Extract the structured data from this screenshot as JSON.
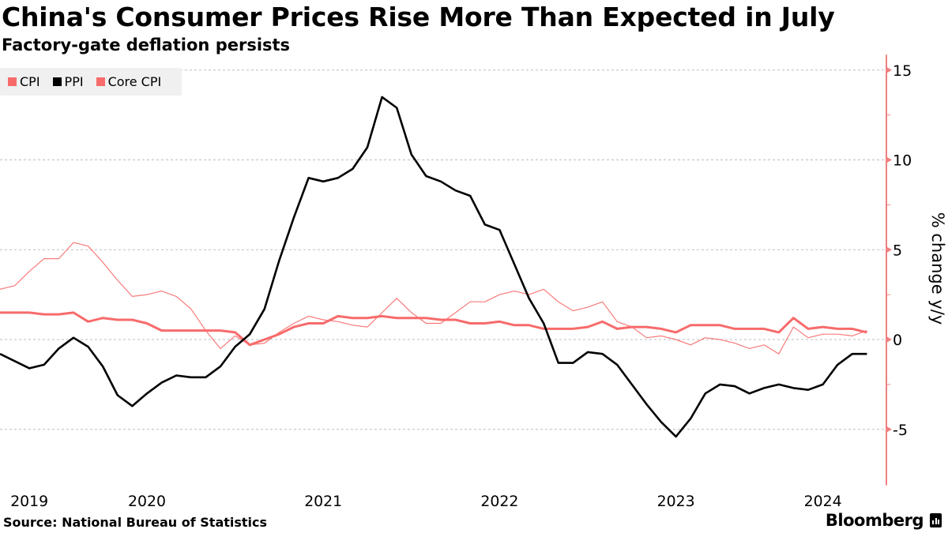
{
  "header": {
    "title": "China's Consumer Prices Rise More Than Expected in July",
    "subtitle": "Factory-gate deflation persists"
  },
  "legend": [
    {
      "label": "CPI",
      "color": "#f76b6b"
    },
    {
      "label": "PPI",
      "color": "#000000"
    },
    {
      "label": "Core CPI",
      "color": "#f76b6b"
    }
  ],
  "footer": {
    "source": "Source: National Bureau of Statistics",
    "brand": "Bloomberg"
  },
  "chart_data": {
    "type": "line",
    "title": "China's Consumer Prices Rise More Than Expected in July",
    "subtitle": "Factory-gate deflation persists",
    "xlabel": "",
    "ylabel": "% change y/y",
    "y_axis_side": "right",
    "ylim": [
      -7.5,
      15.5
    ],
    "yticks": [
      15,
      10,
      5,
      0,
      -5
    ],
    "grid": true,
    "legend_position": "top-left",
    "x_start": "2019-08",
    "x_end": "2024-07",
    "x_tick_labels": [
      {
        "label": "2019",
        "month_index": 2
      },
      {
        "label": "2020",
        "month_index": 10
      },
      {
        "label": "2021",
        "month_index": 22
      },
      {
        "label": "2022",
        "month_index": 34
      },
      {
        "label": "2023",
        "month_index": 46
      },
      {
        "label": "2024",
        "month_index": 56
      }
    ],
    "series": [
      {
        "name": "CPI",
        "color": "#f76b6b",
        "style": "thin",
        "values": [
          2.8,
          3.0,
          3.8,
          4.5,
          4.5,
          5.4,
          5.2,
          4.3,
          3.3,
          2.4,
          2.5,
          2.7,
          2.4,
          1.7,
          0.5,
          -0.5,
          0.2,
          -0.3,
          -0.2,
          0.4,
          0.9,
          1.3,
          1.1,
          1.0,
          0.8,
          0.7,
          1.5,
          2.3,
          1.5,
          0.9,
          0.9,
          1.5,
          2.1,
          2.1,
          2.5,
          2.7,
          2.5,
          2.8,
          2.1,
          1.6,
          1.8,
          2.1,
          1.0,
          0.7,
          0.1,
          0.2,
          0.0,
          -0.3,
          0.1,
          0.0,
          -0.2,
          -0.5,
          -0.3,
          -0.8,
          0.7,
          0.1,
          0.3,
          0.3,
          0.2,
          0.5
        ]
      },
      {
        "name": "PPI",
        "color": "#000000",
        "style": "thick",
        "values": [
          -0.8,
          -1.2,
          -1.6,
          -1.4,
          -0.5,
          0.1,
          -0.4,
          -1.5,
          -3.1,
          -3.7,
          -3.0,
          -2.4,
          -2.0,
          -2.1,
          -2.1,
          -1.5,
          -0.4,
          0.3,
          1.7,
          4.4,
          6.8,
          9.0,
          8.8,
          9.0,
          9.5,
          10.7,
          13.5,
          12.9,
          10.3,
          9.1,
          8.8,
          8.3,
          8.0,
          6.4,
          6.1,
          4.2,
          2.3,
          0.9,
          -1.3,
          -1.3,
          -0.7,
          -0.8,
          -1.4,
          -2.5,
          -3.6,
          -4.6,
          -5.4,
          -4.4,
          -3.0,
          -2.5,
          -2.6,
          -3.0,
          -2.7,
          -2.5,
          -2.7,
          -2.8,
          -2.5,
          -1.4,
          -0.8,
          -0.8
        ]
      },
      {
        "name": "Core CPI",
        "color": "#f76b6b",
        "style": "thick",
        "values": [
          1.5,
          1.5,
          1.5,
          1.4,
          1.4,
          1.5,
          1.0,
          1.2,
          1.1,
          1.1,
          0.9,
          0.5,
          0.5,
          0.5,
          0.5,
          0.5,
          0.4,
          -0.3,
          0.0,
          0.3,
          0.7,
          0.9,
          0.9,
          1.3,
          1.2,
          1.2,
          1.3,
          1.2,
          1.2,
          1.2,
          1.1,
          1.1,
          0.9,
          0.9,
          1.0,
          0.8,
          0.8,
          0.6,
          0.6,
          0.6,
          0.7,
          1.0,
          0.6,
          0.7,
          0.7,
          0.6,
          0.4,
          0.8,
          0.8,
          0.8,
          0.6,
          0.6,
          0.6,
          0.4,
          1.2,
          0.6,
          0.7,
          0.6,
          0.6,
          0.4
        ]
      }
    ]
  }
}
